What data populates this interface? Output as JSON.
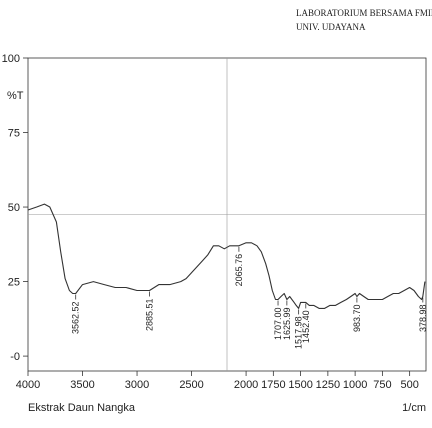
{
  "header": {
    "line1": "LABORATORIUM BERSAMA FMIPA",
    "line2": "UNIV. UDAYANA"
  },
  "chart_data": {
    "type": "line",
    "xlabel": "1/cm",
    "ylabel": "%T",
    "sample_label": "Ekstrak Daun Nangka",
    "xlim": [
      4000,
      350
    ],
    "ylim": [
      -5,
      100
    ],
    "x_ticks": [
      "4000",
      "3500",
      "3000",
      "2500",
      "2000",
      "1750",
      "1500",
      "1250",
      "1000",
      "750",
      "500"
    ],
    "y_ticks": [
      "100",
      "75",
      "50",
      "25",
      "-0"
    ],
    "grid": "center crosshair",
    "series": [
      {
        "x": [
          4000,
          3920,
          3850,
          3800,
          3740,
          3700,
          3660,
          3620,
          3590,
          3562.52,
          3500,
          3400,
          3300,
          3200,
          3100,
          3000,
          2950,
          2885.51,
          2800,
          2700,
          2600,
          2550,
          2500,
          2450,
          2400,
          2350,
          2300,
          2250,
          2200,
          2150,
          2100,
          2065.76,
          2000,
          1950,
          1900,
          1860,
          1820,
          1790,
          1760,
          1730,
          1707.0,
          1680,
          1650,
          1625.99,
          1600,
          1560,
          1540,
          1517.98,
          1500,
          1480,
          1452.4,
          1420,
          1380,
          1330,
          1280,
          1230,
          1180,
          1130,
          1080,
          1040,
          1000,
          983.7,
          960,
          920,
          880,
          840,
          800,
          750,
          700,
          650,
          600,
          550,
          500,
          460,
          420,
          390,
          378.98,
          360
        ],
        "values": [
          49,
          50,
          51,
          50,
          45,
          35,
          26,
          22,
          21,
          21,
          24,
          25,
          24,
          23,
          23,
          22,
          22,
          22,
          24,
          24,
          25,
          26,
          28,
          30,
          32,
          34,
          37,
          37,
          36,
          37,
          37,
          37,
          38,
          38,
          37,
          35,
          31,
          27,
          22,
          19,
          19,
          20,
          21,
          19,
          20,
          18,
          17,
          16,
          18,
          18,
          18,
          17,
          17,
          16,
          16,
          17,
          17,
          18,
          19,
          20,
          21,
          20,
          21,
          20,
          19,
          19,
          19,
          19,
          20,
          21,
          21,
          22,
          23,
          22,
          20,
          19,
          20,
          25
        ]
      }
    ],
    "peak_labels": [
      "3562.52",
      "2885.51",
      "2065.76",
      "1707.00",
      "1625.99",
      "1517.98",
      "1452.40",
      "983.70",
      "378.98"
    ],
    "peak_positions": [
      3562.52,
      2885.51,
      2065.76,
      1707.0,
      1625.99,
      1517.98,
      1452.4,
      983.7,
      378.98
    ],
    "peak_values": [
      21,
      22,
      37,
      19,
      19,
      16,
      18,
      20,
      20
    ]
  }
}
